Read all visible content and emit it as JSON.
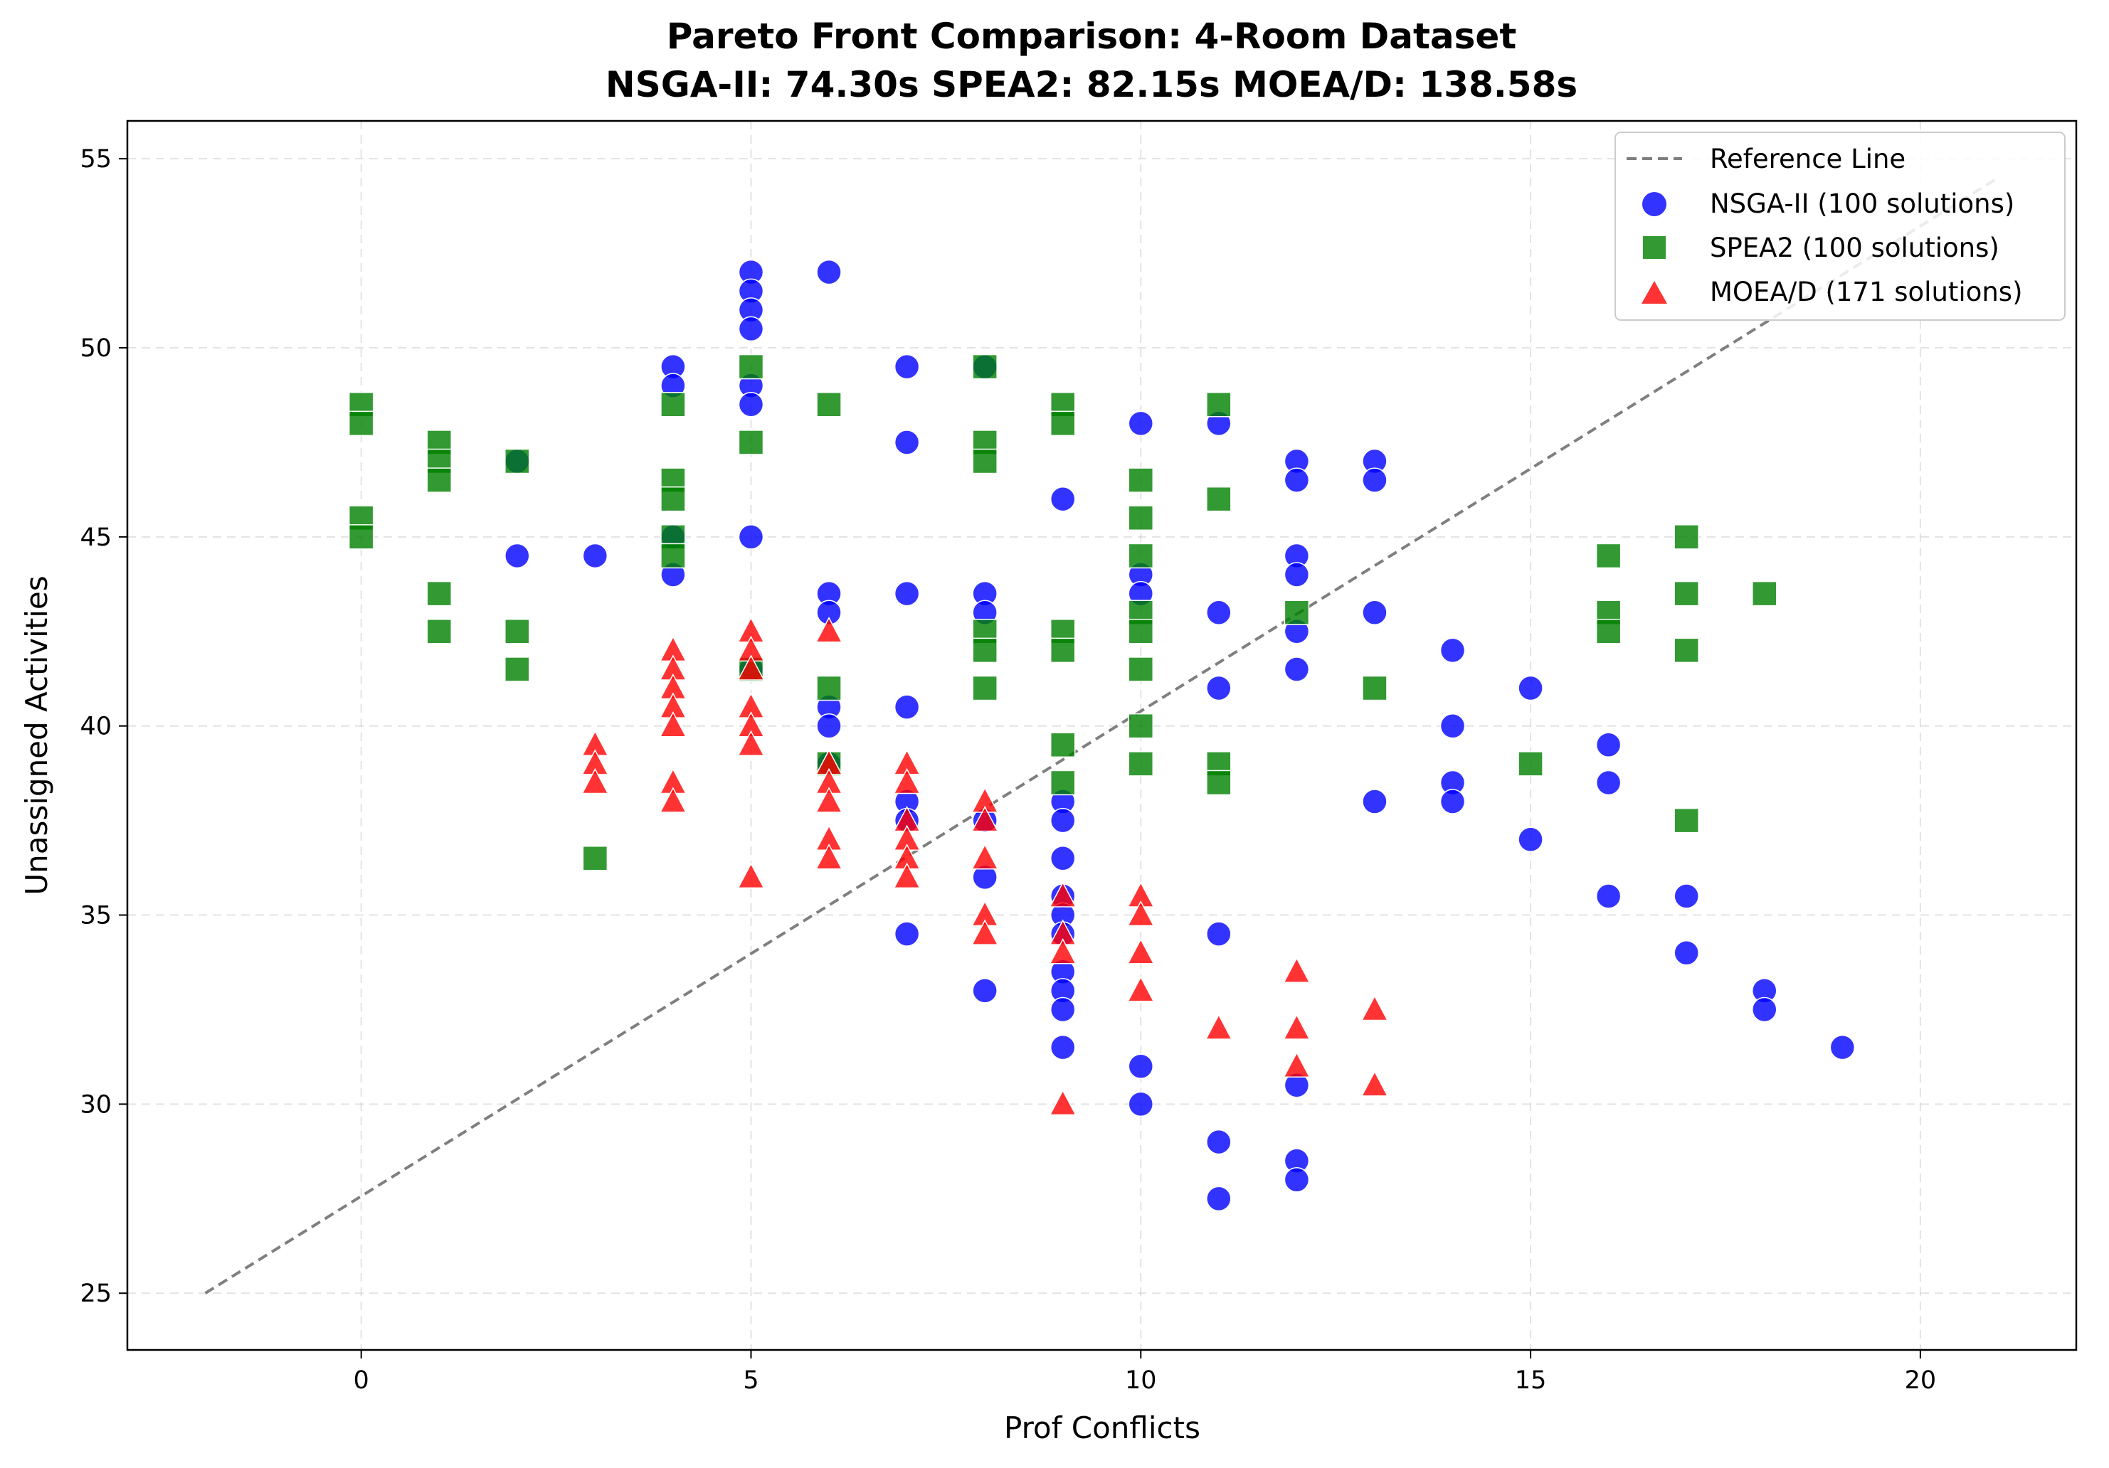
{
  "chart_data": {
    "type": "scatter",
    "title": "Pareto Front Comparison: 4-Room Dataset",
    "subtitle": "NSGA-II: 74.30s  SPEA2: 82.15s  MOEA/D: 138.58s",
    "xlabel": "Prof Conflicts",
    "ylabel": "Unassigned Activities",
    "xlim": [
      -3,
      22
    ],
    "ylim": [
      23.5,
      56
    ],
    "xticks": [
      0,
      5,
      10,
      15,
      20
    ],
    "yticks": [
      25,
      30,
      35,
      40,
      45,
      50,
      55
    ],
    "grid": true,
    "legend_position": "top-right",
    "reference_line": {
      "name": "Reference Line",
      "color": "#7f7f7f",
      "style": "dashed",
      "x": [
        -2,
        21
      ],
      "y": [
        25,
        54.5
      ]
    },
    "series": [
      {
        "name": "NSGA-II (100 solutions)",
        "marker": "circle",
        "color": "#0000ff",
        "points": [
          [
            2,
            47
          ],
          [
            2,
            44.5
          ],
          [
            3,
            44.5
          ],
          [
            4,
            49.5
          ],
          [
            4,
            49
          ],
          [
            4,
            44
          ],
          [
            4,
            45
          ],
          [
            5,
            52
          ],
          [
            5,
            51.5
          ],
          [
            5,
            51
          ],
          [
            5,
            50.5
          ],
          [
            5,
            49
          ],
          [
            5,
            48.5
          ],
          [
            5,
            45
          ],
          [
            5,
            41.5
          ],
          [
            6,
            52
          ],
          [
            6,
            43.5
          ],
          [
            6,
            43
          ],
          [
            6,
            40.5
          ],
          [
            6,
            40
          ],
          [
            6,
            39
          ],
          [
            7,
            49.5
          ],
          [
            7,
            47.5
          ],
          [
            7,
            43.5
          ],
          [
            7,
            40.5
          ],
          [
            7,
            38
          ],
          [
            7,
            37.5
          ],
          [
            7,
            34.5
          ],
          [
            8,
            49.5
          ],
          [
            8,
            43.5
          ],
          [
            8,
            43
          ],
          [
            8,
            37.5
          ],
          [
            8,
            36
          ],
          [
            8,
            33
          ],
          [
            9,
            46
          ],
          [
            9,
            38
          ],
          [
            9,
            37.5
          ],
          [
            9,
            36.5
          ],
          [
            9,
            35.5
          ],
          [
            9,
            35
          ],
          [
            9,
            34.5
          ],
          [
            9,
            33.5
          ],
          [
            9,
            33
          ],
          [
            9,
            32.5
          ],
          [
            9,
            31.5
          ],
          [
            10,
            48
          ],
          [
            10,
            44
          ],
          [
            10,
            43.5
          ],
          [
            10,
            31
          ],
          [
            10,
            30
          ],
          [
            11,
            48
          ],
          [
            11,
            43
          ],
          [
            11,
            41
          ],
          [
            11,
            34.5
          ],
          [
            11,
            29
          ],
          [
            11,
            27.5
          ],
          [
            12,
            47
          ],
          [
            12,
            46.5
          ],
          [
            12,
            44.5
          ],
          [
            12,
            44
          ],
          [
            12,
            42.5
          ],
          [
            12,
            41.5
          ],
          [
            12,
            30.5
          ],
          [
            12,
            28.5
          ],
          [
            12,
            28
          ],
          [
            13,
            47
          ],
          [
            13,
            46.5
          ],
          [
            13,
            43
          ],
          [
            13,
            38
          ],
          [
            14,
            42
          ],
          [
            14,
            40
          ],
          [
            14,
            38.5
          ],
          [
            14,
            38
          ],
          [
            15,
            41
          ],
          [
            15,
            37
          ],
          [
            16,
            39.5
          ],
          [
            16,
            38.5
          ],
          [
            16,
            35.5
          ],
          [
            17,
            35.5
          ],
          [
            17,
            34
          ],
          [
            18,
            33
          ],
          [
            18,
            32.5
          ],
          [
            19,
            31.5
          ]
        ]
      },
      {
        "name": "SPEA2 (100 solutions)",
        "marker": "square",
        "color": "#008000",
        "points": [
          [
            0,
            48.5
          ],
          [
            0,
            48
          ],
          [
            0,
            45.5
          ],
          [
            0,
            45
          ],
          [
            1,
            47.5
          ],
          [
            1,
            47
          ],
          [
            1,
            46.5
          ],
          [
            1,
            43.5
          ],
          [
            1,
            42.5
          ],
          [
            2,
            47
          ],
          [
            2,
            42.5
          ],
          [
            2,
            41.5
          ],
          [
            3,
            36.5
          ],
          [
            4,
            48.5
          ],
          [
            4,
            46.5
          ],
          [
            4,
            46
          ],
          [
            4,
            45
          ],
          [
            4,
            44.5
          ],
          [
            5,
            49.5
          ],
          [
            5,
            47.5
          ],
          [
            5,
            41.5
          ],
          [
            6,
            48.5
          ],
          [
            6,
            41
          ],
          [
            6,
            39
          ],
          [
            8,
            49.5
          ],
          [
            8,
            47.5
          ],
          [
            8,
            47
          ],
          [
            8,
            42.5
          ],
          [
            8,
            42
          ],
          [
            8,
            41
          ],
          [
            9,
            48.5
          ],
          [
            9,
            48
          ],
          [
            9,
            42.5
          ],
          [
            9,
            42
          ],
          [
            9,
            39.5
          ],
          [
            9,
            38.5
          ],
          [
            10,
            46.5
          ],
          [
            10,
            45.5
          ],
          [
            10,
            44.5
          ],
          [
            10,
            43
          ],
          [
            10,
            42.5
          ],
          [
            10,
            41.5
          ],
          [
            10,
            40
          ],
          [
            10,
            39
          ],
          [
            11,
            48.5
          ],
          [
            11,
            46
          ],
          [
            11,
            39
          ],
          [
            11,
            38.5
          ],
          [
            12,
            43
          ],
          [
            13,
            41
          ],
          [
            15,
            39
          ],
          [
            16,
            44.5
          ],
          [
            16,
            43
          ],
          [
            16,
            42.5
          ],
          [
            17,
            45
          ],
          [
            17,
            43.5
          ],
          [
            17,
            42
          ],
          [
            17,
            37.5
          ],
          [
            18,
            43.5
          ]
        ]
      },
      {
        "name": "MOEA/D (171 solutions)",
        "marker": "triangle",
        "color": "#ff0000",
        "points": [
          [
            3,
            39.5
          ],
          [
            3,
            39
          ],
          [
            3,
            38.5
          ],
          [
            4,
            42
          ],
          [
            4,
            41.5
          ],
          [
            4,
            41
          ],
          [
            4,
            40.5
          ],
          [
            4,
            40
          ],
          [
            4,
            38.5
          ],
          [
            4,
            38
          ],
          [
            5,
            42.5
          ],
          [
            5,
            42
          ],
          [
            5,
            41.5
          ],
          [
            5,
            40.5
          ],
          [
            5,
            40
          ],
          [
            5,
            39.5
          ],
          [
            5,
            36
          ],
          [
            6,
            42.5
          ],
          [
            6,
            39
          ],
          [
            6,
            38.5
          ],
          [
            6,
            38
          ],
          [
            6,
            37
          ],
          [
            6,
            36.5
          ],
          [
            7,
            39
          ],
          [
            7,
            38.5
          ],
          [
            7,
            37.5
          ],
          [
            7,
            37
          ],
          [
            7,
            36.5
          ],
          [
            7,
            36
          ],
          [
            8,
            38
          ],
          [
            8,
            37.5
          ],
          [
            8,
            36.5
          ],
          [
            8,
            35
          ],
          [
            8,
            34.5
          ],
          [
            9,
            35.5
          ],
          [
            9,
            34.5
          ],
          [
            9,
            34
          ],
          [
            9,
            30
          ],
          [
            10,
            35.5
          ],
          [
            10,
            35
          ],
          [
            10,
            34
          ],
          [
            10,
            33
          ],
          [
            11,
            32
          ],
          [
            12,
            33.5
          ],
          [
            12,
            32
          ],
          [
            12,
            31
          ],
          [
            13,
            32.5
          ],
          [
            13,
            30.5
          ]
        ]
      }
    ]
  }
}
